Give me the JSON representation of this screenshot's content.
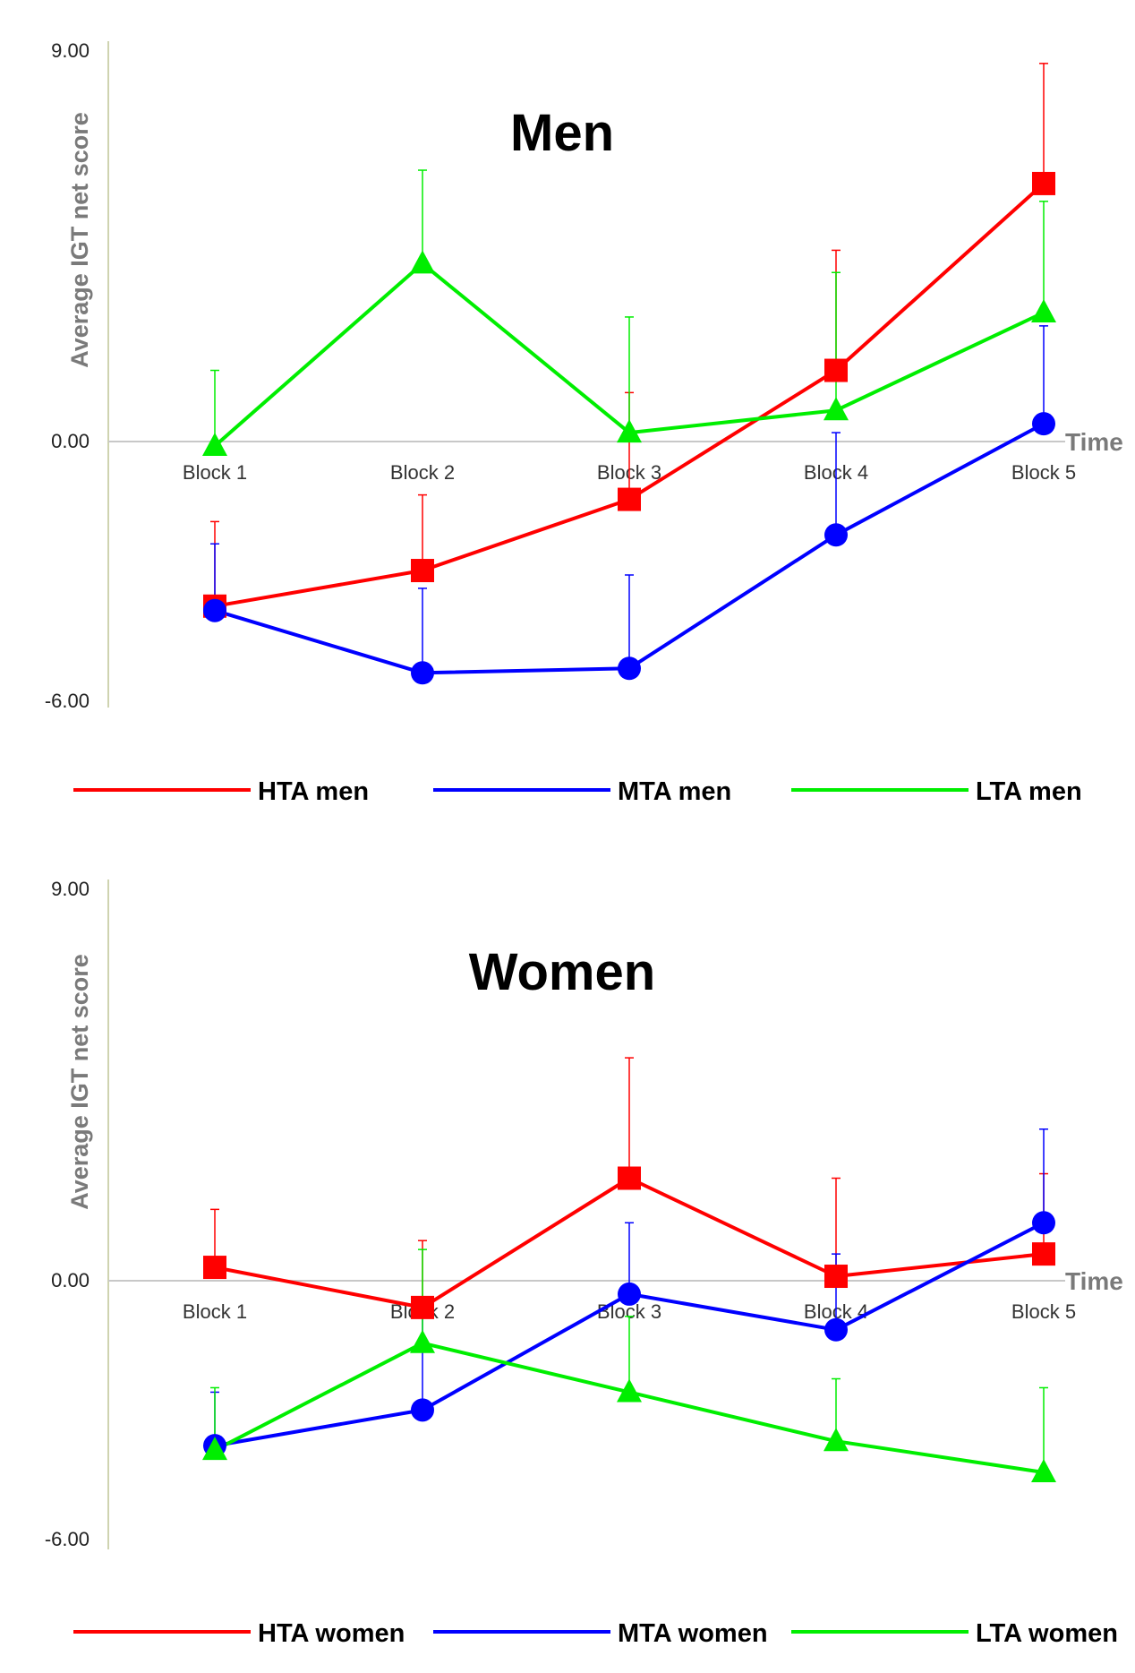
{
  "chart_data": [
    {
      "type": "line",
      "title": "Men",
      "ylabel": "Average IGT net score",
      "xlabel": "Time",
      "categories": [
        "Block 1",
        "Block 2",
        "Block 3",
        "Block 4",
        "Block 5"
      ],
      "ylim": [
        -6,
        9
      ],
      "ytick_labels": [
        "9.00",
        "0.00",
        "-6.00"
      ],
      "series": [
        {
          "name": "HTA men",
          "color": "#ff0000",
          "marker": "square",
          "values": [
            -3.7,
            -2.9,
            -1.3,
            1.6,
            5.8
          ],
          "error_plus": [
            1.9,
            1.7,
            2.4,
            2.7,
            2.7
          ]
        },
        {
          "name": "MTA men",
          "color": "#0000ff",
          "marker": "circle",
          "values": [
            -3.8,
            -5.2,
            -5.1,
            -2.1,
            0.4
          ],
          "error_plus": [
            1.5,
            1.9,
            2.1,
            2.3,
            2.2
          ]
        },
        {
          "name": "LTA men",
          "color": "#00ee00",
          "marker": "triangle",
          "values": [
            -0.1,
            4.0,
            0.2,
            0.7,
            2.9
          ],
          "error_plus": [
            1.7,
            2.1,
            2.6,
            3.1,
            2.5
          ]
        }
      ]
    },
    {
      "type": "line",
      "title": "Women",
      "ylabel": "Average IGT net score",
      "xlabel": "Time",
      "categories": [
        "Block 1",
        "Block 2",
        "Block 3",
        "Block 4",
        "Block 5"
      ],
      "ylim": [
        -6,
        9
      ],
      "ytick_labels": [
        "9.00",
        "0.00",
        "-6.00"
      ],
      "series": [
        {
          "name": "HTA women",
          "color": "#ff0000",
          "marker": "square",
          "values": [
            0.3,
            -0.6,
            2.3,
            0.1,
            0.6
          ],
          "error_plus": [
            1.3,
            1.5,
            2.7,
            2.2,
            1.8
          ]
        },
        {
          "name": "MTA women",
          "color": "#0000ff",
          "marker": "circle",
          "values": [
            -3.7,
            -2.9,
            -0.3,
            -1.1,
            1.3
          ],
          "error_plus": [
            1.2,
            2.4,
            1.6,
            1.7,
            2.1
          ]
        },
        {
          "name": "LTA women",
          "color": "#00ee00",
          "marker": "triangle",
          "values": [
            -3.8,
            -1.4,
            -2.5,
            -3.6,
            -4.3
          ],
          "error_plus": [
            1.4,
            2.1,
            1.7,
            1.4,
            1.9
          ]
        }
      ]
    }
  ]
}
